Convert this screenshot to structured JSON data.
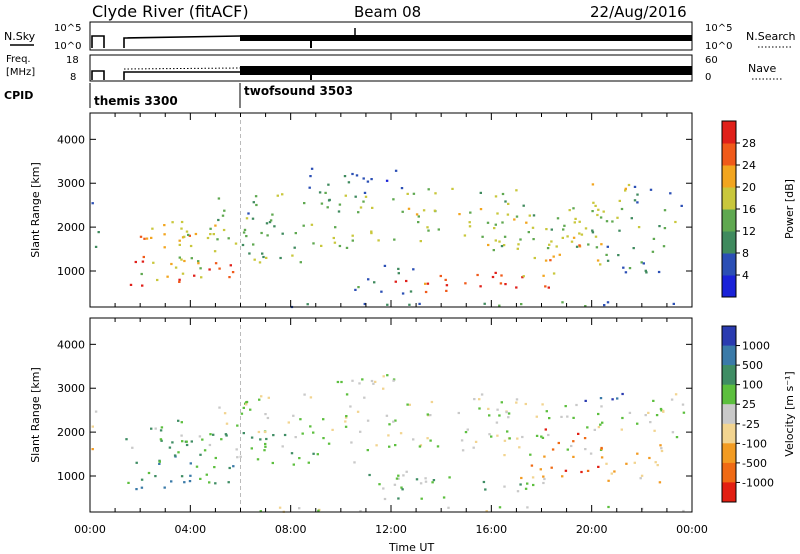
{
  "header": {
    "station": "Clyde River (fitACF)",
    "beam": "Beam 08",
    "date": "22/Aug/2016"
  },
  "top_panels": {
    "nsky": {
      "label": "N.Sky",
      "right_label": "N.Search",
      "left_ticks": [
        "10^5",
        "10^0"
      ],
      "right_ticks": [
        "10^5",
        "10^0"
      ]
    },
    "freq": {
      "label_line1": "Freq.",
      "label_line2": "[MHz]",
      "left_ticks": [
        "18",
        "8"
      ],
      "right_label": "Nave",
      "right_ticks": [
        "60",
        "0"
      ]
    },
    "cpid": {
      "label": "CPID",
      "modes": [
        {
          "name": "themis 3300",
          "start_hour": 0
        },
        {
          "name": "twofsound 3503",
          "start_hour": 6
        }
      ]
    }
  },
  "chart_data": [
    {
      "type": "heatmap",
      "name": "Power",
      "ylabel": "Slant Range [km]",
      "yticks": [
        "1000",
        "2000",
        "3000",
        "4000"
      ],
      "ylim": [
        180,
        4600
      ],
      "xlim": [
        0,
        24
      ],
      "colorbar": {
        "label": "Power [dB]",
        "ticks": [
          "4",
          "8",
          "12",
          "16",
          "20",
          "24",
          "28"
        ],
        "colors": [
          "#1a22d8",
          "#2b4fb5",
          "#3f8a5e",
          "#5fa850",
          "#c9c73c",
          "#f2a51f",
          "#f05a1a",
          "#e0201a"
        ]
      }
    },
    {
      "type": "heatmap",
      "name": "Velocity",
      "ylabel": "Slant Range [km]",
      "yticks": [
        "1000",
        "2000",
        "3000",
        "4000"
      ],
      "ylim": [
        180,
        4600
      ],
      "xlim": [
        0,
        24
      ],
      "xlabel": "Time UT",
      "xticks": [
        "00:00",
        "04:00",
        "08:00",
        "12:00",
        "16:00",
        "20:00",
        "00:00"
      ],
      "colorbar": {
        "label": "Velocity [m s⁻¹]",
        "ticks": [
          "1000",
          "500",
          "100",
          "25",
          "-25",
          "-100",
          "-500",
          "-1000"
        ],
        "colors": [
          "#2a3bb0",
          "#3a7aa8",
          "#3f8d64",
          "#5cbf3e",
          "#c9c9c9",
          "#f2d490",
          "#f29b22",
          "#ef6a14",
          "#e21f12"
        ]
      }
    }
  ]
}
